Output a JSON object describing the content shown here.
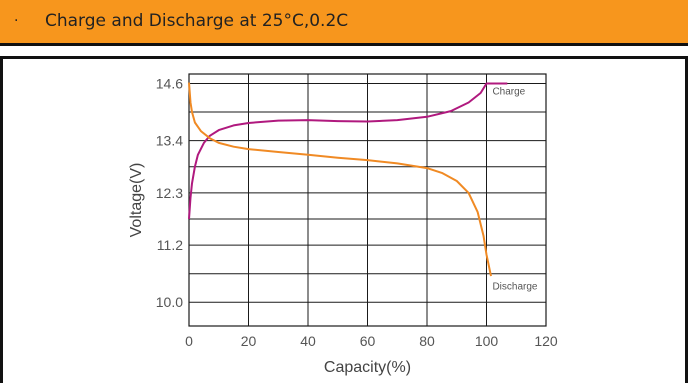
{
  "header": {
    "title": "Charge and Discharge at 25°C,0.2C",
    "bullet": "·"
  },
  "colors": {
    "header_bg": "#f7961d",
    "charge": "#b0197e",
    "discharge": "#f08a24",
    "grid": "#1a1a1a"
  },
  "chart_data": {
    "type": "line",
    "title": "Charge and Discharge at 25°C,0.2C",
    "xlabel": "Capacity(%)",
    "ylabel": "Voltage(V)",
    "xlim": [
      0,
      120
    ],
    "ylim": [
      9.5,
      14.8
    ],
    "x_ticks": [
      0,
      20,
      40,
      60,
      80,
      100,
      120
    ],
    "y_ticks": [
      10.0,
      11.2,
      12.3,
      13.4,
      14.6
    ],
    "x_tick_labels": [
      "0",
      "20",
      "40",
      "60",
      "80",
      "100",
      "120"
    ],
    "y_tick_labels": [
      "10.0",
      "11.2",
      "12.3",
      "13.4",
      "14.6"
    ],
    "grid": true,
    "series": [
      {
        "name": "Charge",
        "color": "#b0197e",
        "points": [
          [
            0,
            11.75
          ],
          [
            0.5,
            12.2
          ],
          [
            1,
            12.5
          ],
          [
            2,
            12.85
          ],
          [
            3,
            13.1
          ],
          [
            5,
            13.35
          ],
          [
            7,
            13.5
          ],
          [
            10,
            13.62
          ],
          [
            15,
            13.72
          ],
          [
            20,
            13.77
          ],
          [
            30,
            13.82
          ],
          [
            40,
            13.83
          ],
          [
            50,
            13.81
          ],
          [
            60,
            13.8
          ],
          [
            70,
            13.83
          ],
          [
            80,
            13.9
          ],
          [
            88,
            14.02
          ],
          [
            94,
            14.2
          ],
          [
            98,
            14.4
          ],
          [
            100,
            14.6
          ],
          [
            107,
            14.6
          ]
        ]
      },
      {
        "name": "Discharge",
        "color": "#f08a24",
        "points": [
          [
            0,
            14.62
          ],
          [
            0.5,
            14.2
          ],
          [
            1,
            14.0
          ],
          [
            2,
            13.78
          ],
          [
            4,
            13.6
          ],
          [
            7,
            13.45
          ],
          [
            10,
            13.35
          ],
          [
            15,
            13.27
          ],
          [
            20,
            13.22
          ],
          [
            30,
            13.16
          ],
          [
            40,
            13.1
          ],
          [
            50,
            13.04
          ],
          [
            60,
            12.99
          ],
          [
            70,
            12.92
          ],
          [
            80,
            12.82
          ],
          [
            85,
            12.72
          ],
          [
            90,
            12.55
          ],
          [
            94,
            12.3
          ],
          [
            97,
            11.9
          ],
          [
            99,
            11.4
          ],
          [
            100,
            11.0
          ],
          [
            101.5,
            10.55
          ]
        ]
      }
    ],
    "annotations": [
      {
        "text": "Charge",
        "series": "Charge",
        "at": [
          102,
          14.45
        ]
      },
      {
        "text": "Discharge",
        "series": "Discharge",
        "at": [
          102,
          10.35
        ]
      }
    ]
  }
}
